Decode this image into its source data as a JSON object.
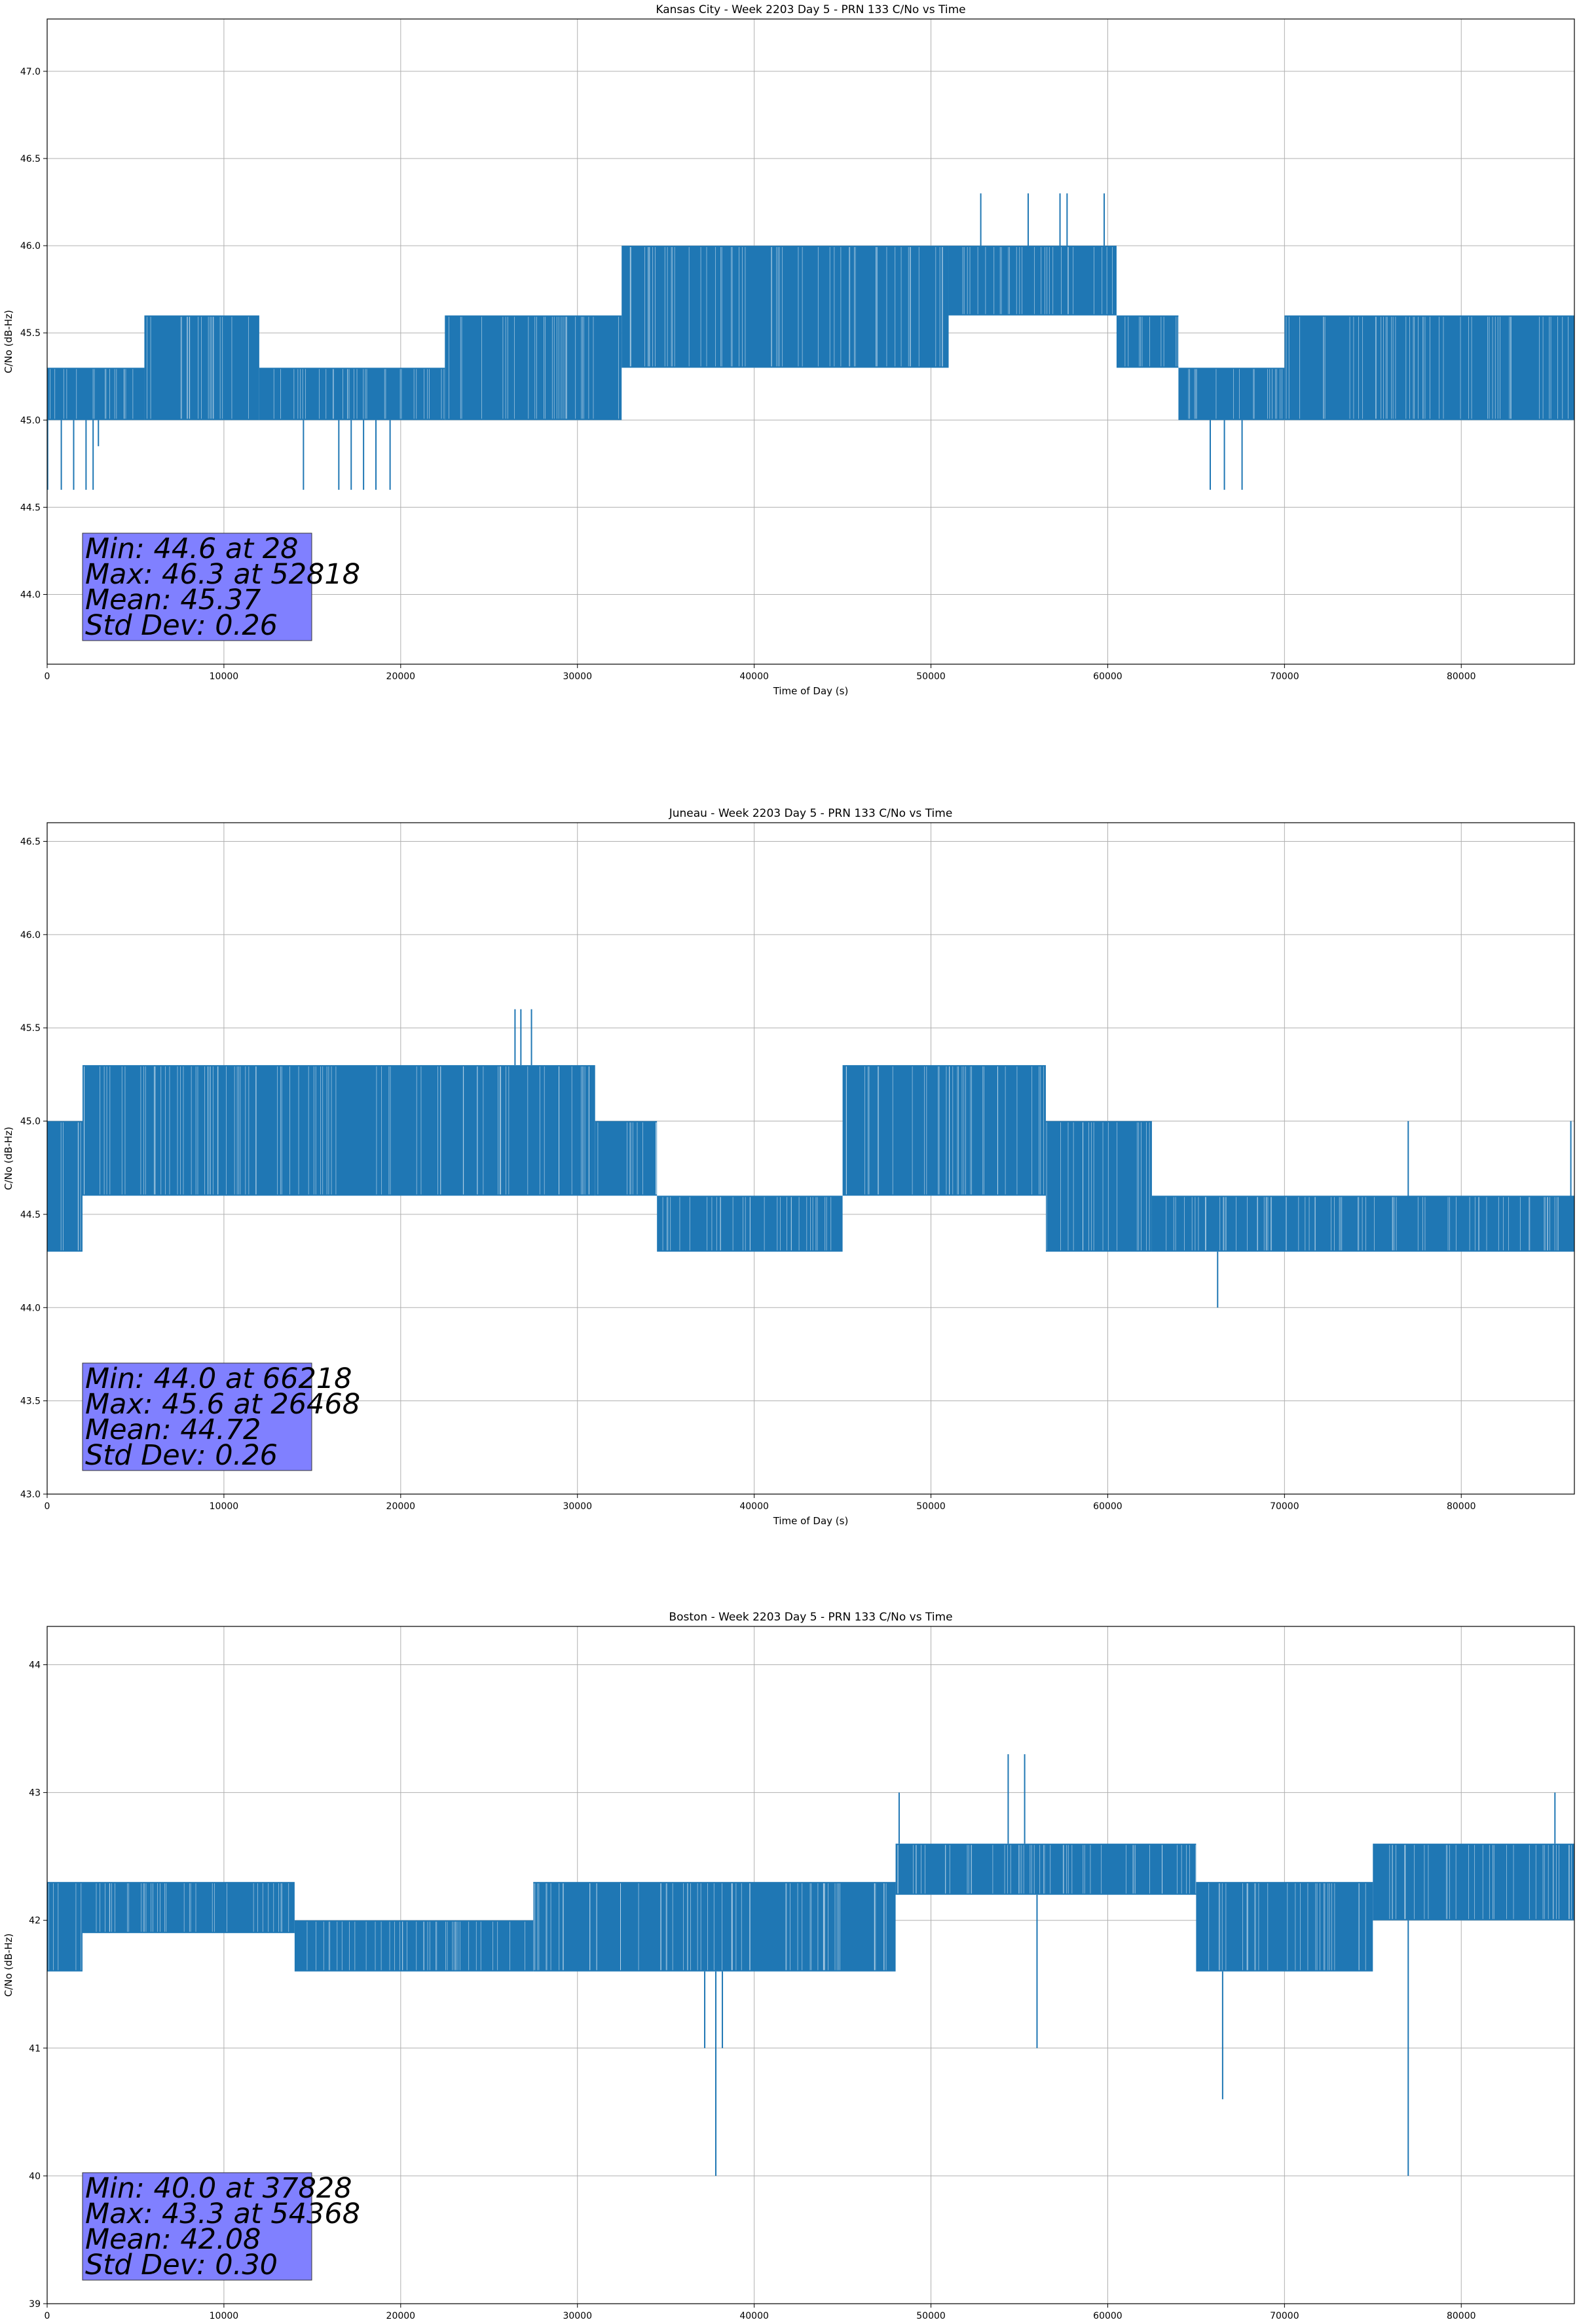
{
  "figure": {
    "series_color": "#1f77b4",
    "stats_box_color": "#8080ff",
    "grid_color": "#b0b0b0"
  },
  "chart_data": [
    {
      "type": "line",
      "title": "Kansas City - Week 2203 Day 5 - PRN 133 C/No vs Time",
      "xlabel": "Time of Day (s)",
      "ylabel": "C/No (dB-Hz)",
      "xlim": [
        0,
        86400
      ],
      "ylim": [
        43.6,
        47.3
      ],
      "xticks": [
        0,
        10000,
        20000,
        30000,
        40000,
        50000,
        60000,
        70000,
        80000
      ],
      "yticks": [
        44.0,
        44.5,
        45.0,
        45.5,
        46.0,
        46.5,
        47.0
      ],
      "ytick_decimals": 1,
      "grid": true,
      "stats": {
        "min_text": "Min: 44.6 at 28",
        "max_text": "Max: 46.3 at 52818",
        "mean_text": "Mean: 45.37",
        "std_text": "Std Dev: 0.26"
      },
      "series": [
        {
          "name": "C/No",
          "segments": [
            {
              "x0": 0,
              "x1": 5500,
              "low": 45.0,
              "high": 45.3
            },
            {
              "x0": 5500,
              "x1": 12000,
              "low": 45.0,
              "high": 45.6
            },
            {
              "x0": 12000,
              "x1": 22500,
              "low": 45.0,
              "high": 45.3
            },
            {
              "x0": 22500,
              "x1": 32500,
              "low": 45.0,
              "high": 45.6
            },
            {
              "x0": 32500,
              "x1": 51000,
              "low": 45.3,
              "high": 46.0
            },
            {
              "x0": 51000,
              "x1": 60500,
              "low": 45.6,
              "high": 46.0
            },
            {
              "x0": 60500,
              "x1": 64000,
              "low": 45.3,
              "high": 45.6
            },
            {
              "x0": 64000,
              "x1": 70000,
              "low": 45.0,
              "high": 45.3
            },
            {
              "x0": 70000,
              "x1": 86400,
              "low": 45.0,
              "high": 45.6
            }
          ],
          "spikes": [
            {
              "x": 28,
              "y": 44.6
            },
            {
              "x": 800,
              "y": 44.6
            },
            {
              "x": 1500,
              "y": 44.6
            },
            {
              "x": 2200,
              "y": 44.6
            },
            {
              "x": 2600,
              "y": 44.6
            },
            {
              "x": 2900,
              "y": 44.85
            },
            {
              "x": 14500,
              "y": 44.6
            },
            {
              "x": 16500,
              "y": 44.6
            },
            {
              "x": 17200,
              "y": 44.6
            },
            {
              "x": 17900,
              "y": 44.6
            },
            {
              "x": 18600,
              "y": 44.6
            },
            {
              "x": 19400,
              "y": 44.6
            },
            {
              "x": 52818,
              "y": 46.3
            },
            {
              "x": 55500,
              "y": 46.3
            },
            {
              "x": 57300,
              "y": 46.3
            },
            {
              "x": 57700,
              "y": 46.3
            },
            {
              "x": 59800,
              "y": 46.3
            },
            {
              "x": 65800,
              "y": 44.6
            },
            {
              "x": 66600,
              "y": 44.6
            },
            {
              "x": 67600,
              "y": 44.6
            }
          ]
        }
      ]
    },
    {
      "type": "line",
      "title": "Juneau - Week 2203 Day 5 - PRN 133 C/No vs Time",
      "xlabel": "Time of Day (s)",
      "ylabel": "C/No (dB-Hz)",
      "xlim": [
        0,
        86400
      ],
      "ylim": [
        43.0,
        46.6
      ],
      "xticks": [
        0,
        10000,
        20000,
        30000,
        40000,
        50000,
        60000,
        70000,
        80000
      ],
      "yticks": [
        43.0,
        43.5,
        44.0,
        44.5,
        45.0,
        45.5,
        46.0,
        46.5
      ],
      "ytick_decimals": 1,
      "grid": true,
      "stats": {
        "min_text": "Min: 44.0 at 66218",
        "max_text": "Max: 45.6 at 26468",
        "mean_text": "Mean: 44.72",
        "std_text": "Std Dev: 0.26"
      },
      "series": [
        {
          "name": "C/No",
          "segments": [
            {
              "x0": 0,
              "x1": 2000,
              "low": 44.3,
              "high": 45.0
            },
            {
              "x0": 2000,
              "x1": 31000,
              "low": 44.6,
              "high": 45.3
            },
            {
              "x0": 31000,
              "x1": 34500,
              "low": 44.6,
              "high": 45.0
            },
            {
              "x0": 34500,
              "x1": 45000,
              "low": 44.3,
              "high": 44.6
            },
            {
              "x0": 45000,
              "x1": 56500,
              "low": 44.6,
              "high": 45.3
            },
            {
              "x0": 56500,
              "x1": 62500,
              "low": 44.3,
              "high": 45.0
            },
            {
              "x0": 62500,
              "x1": 86400,
              "low": 44.3,
              "high": 44.6
            }
          ],
          "spikes": [
            {
              "x": 26468,
              "y": 45.6
            },
            {
              "x": 26800,
              "y": 45.6
            },
            {
              "x": 27400,
              "y": 45.6
            },
            {
              "x": 66218,
              "y": 44.0
            },
            {
              "x": 77000,
              "y": 45.0
            },
            {
              "x": 86200,
              "y": 45.0
            }
          ]
        }
      ]
    },
    {
      "type": "line",
      "title": "Boston - Week 2203 Day 5 - PRN 133 C/No vs Time",
      "xlabel": "Time of Day (s)",
      "ylabel": "C/No (dB-Hz)",
      "xlim": [
        0,
        86400
      ],
      "ylim": [
        39.0,
        44.3
      ],
      "xticks": [
        0,
        10000,
        20000,
        30000,
        40000,
        50000,
        60000,
        70000,
        80000
      ],
      "yticks": [
        39,
        40,
        41,
        42,
        43,
        44
      ],
      "ytick_decimals": 0,
      "grid": true,
      "stats": {
        "min_text": "Min: 40.0 at 37828",
        "max_text": "Max: 43.3 at 54368",
        "mean_text": "Mean: 42.08",
        "std_text": "Std Dev: 0.30"
      },
      "series": [
        {
          "name": "C/No",
          "segments": [
            {
              "x0": 0,
              "x1": 2000,
              "low": 41.6,
              "high": 42.3
            },
            {
              "x0": 2000,
              "x1": 14000,
              "low": 41.9,
              "high": 42.3
            },
            {
              "x0": 14000,
              "x1": 27500,
              "low": 41.6,
              "high": 42.0
            },
            {
              "x0": 27500,
              "x1": 48000,
              "low": 41.6,
              "high": 42.3
            },
            {
              "x0": 48000,
              "x1": 65000,
              "low": 42.2,
              "high": 42.6
            },
            {
              "x0": 65000,
              "x1": 75000,
              "low": 41.6,
              "high": 42.3
            },
            {
              "x0": 75000,
              "x1": 86400,
              "low": 42.0,
              "high": 42.6
            }
          ],
          "spikes": [
            {
              "x": 37828,
              "y": 40.0
            },
            {
              "x": 37200,
              "y": 41.0
            },
            {
              "x": 38200,
              "y": 41.0
            },
            {
              "x": 54368,
              "y": 43.3
            },
            {
              "x": 55300,
              "y": 43.3
            },
            {
              "x": 56000,
              "y": 41.0
            },
            {
              "x": 66500,
              "y": 40.6
            },
            {
              "x": 77000,
              "y": 40.0
            },
            {
              "x": 48200,
              "y": 43.0
            },
            {
              "x": 85300,
              "y": 43.0
            }
          ]
        }
      ]
    }
  ]
}
